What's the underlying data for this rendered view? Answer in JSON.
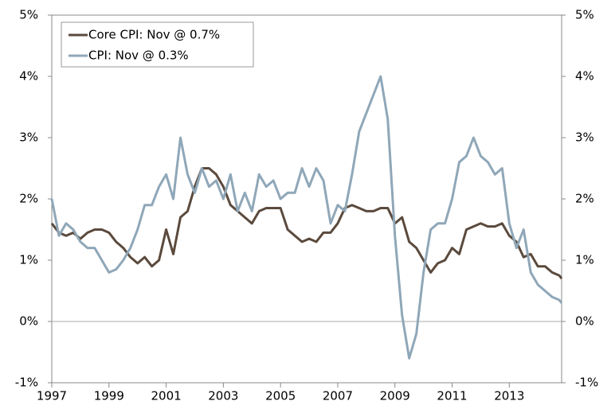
{
  "chart_data": {
    "type": "line",
    "x": [
      1997,
      1997.25,
      1997.5,
      1997.75,
      1998,
      1998.25,
      1998.5,
      1998.75,
      1999,
      1999.25,
      1999.5,
      1999.75,
      2000,
      2000.25,
      2000.5,
      2000.75,
      2001,
      2001.25,
      2001.5,
      2001.75,
      2002,
      2002.25,
      2002.5,
      2002.75,
      2003,
      2003.25,
      2003.5,
      2003.75,
      2004,
      2004.25,
      2004.5,
      2004.75,
      2005,
      2005.25,
      2005.5,
      2005.75,
      2006,
      2006.25,
      2006.5,
      2006.75,
      2007,
      2007.25,
      2007.5,
      2007.75,
      2008,
      2008.25,
      2008.5,
      2008.75,
      2009,
      2009.25,
      2009.5,
      2009.75,
      2010,
      2010.25,
      2010.5,
      2010.75,
      2011,
      2011.25,
      2011.5,
      2011.75,
      2012,
      2012.25,
      2012.5,
      2012.75,
      2013,
      2013.25,
      2013.5,
      2013.75,
      2014,
      2014.25,
      2014.5,
      2014.75,
      2014.83
    ],
    "series": [
      {
        "name": "Core CPI: Nov @ 0.7%",
        "color": "#5b4a3d",
        "values": [
          1.6,
          1.45,
          1.4,
          1.45,
          1.35,
          1.45,
          1.5,
          1.5,
          1.45,
          1.3,
          1.2,
          1.05,
          0.95,
          1.05,
          0.9,
          1.0,
          1.5,
          1.1,
          1.7,
          1.8,
          2.2,
          2.5,
          2.5,
          2.4,
          2.2,
          1.9,
          1.8,
          1.7,
          1.6,
          1.8,
          1.85,
          1.85,
          1.85,
          1.5,
          1.4,
          1.3,
          1.35,
          1.3,
          1.45,
          1.45,
          1.6,
          1.85,
          1.9,
          1.85,
          1.8,
          1.8,
          1.85,
          1.85,
          1.6,
          1.7,
          1.3,
          1.2,
          1.0,
          0.8,
          0.95,
          1.0,
          1.2,
          1.1,
          1.5,
          1.55,
          1.6,
          1.55,
          1.55,
          1.6,
          1.4,
          1.3,
          1.05,
          1.1,
          0.9,
          0.9,
          0.8,
          0.75,
          0.7
        ]
      },
      {
        "name": "CPI: Nov @ 0.3%",
        "color": "#8fa7b8",
        "values": [
          2.0,
          1.4,
          1.6,
          1.5,
          1.3,
          1.2,
          1.2,
          1.0,
          0.8,
          0.85,
          1.0,
          1.2,
          1.5,
          1.9,
          1.9,
          2.2,
          2.4,
          2.0,
          3.0,
          2.4,
          2.1,
          2.5,
          2.2,
          2.3,
          2.0,
          2.4,
          1.8,
          2.1,
          1.8,
          2.4,
          2.2,
          2.3,
          2.0,
          2.1,
          2.1,
          2.5,
          2.2,
          2.5,
          2.3,
          1.6,
          1.9,
          1.8,
          2.4,
          3.1,
          3.4,
          3.7,
          4.0,
          3.3,
          1.4,
          0.1,
          -0.6,
          -0.2,
          0.8,
          1.5,
          1.6,
          1.6,
          2.0,
          2.6,
          2.7,
          3.0,
          2.7,
          2.6,
          2.4,
          2.5,
          1.6,
          1.2,
          1.5,
          0.8,
          0.6,
          0.5,
          0.4,
          0.35,
          0.3
        ]
      }
    ],
    "xlim": [
      1997,
      2014.83
    ],
    "xticks": [
      1997,
      1999,
      2001,
      2003,
      2005,
      2007,
      2009,
      2011,
      2013
    ],
    "ylim": [
      -1,
      5
    ],
    "yticks": [
      {
        "value": -1,
        "label": "-1%"
      },
      {
        "value": 0,
        "label": "0%"
      },
      {
        "value": 1,
        "label": "1%"
      },
      {
        "value": 2,
        "label": "2%"
      },
      {
        "value": 3,
        "label": "3%"
      },
      {
        "value": 4,
        "label": "4%"
      },
      {
        "value": 5,
        "label": "5%"
      }
    ],
    "y2lim": [
      -1,
      5
    ],
    "y2ticks": [
      {
        "value": -1,
        "label": "-1%"
      },
      {
        "value": 0,
        "label": "0%"
      },
      {
        "value": 1,
        "label": "1%"
      },
      {
        "value": 2,
        "label": "2%"
      },
      {
        "value": 3,
        "label": "3%"
      },
      {
        "value": 4,
        "label": "4%"
      },
      {
        "value": 5,
        "label": "5%"
      }
    ],
    "legend": "upper left"
  }
}
